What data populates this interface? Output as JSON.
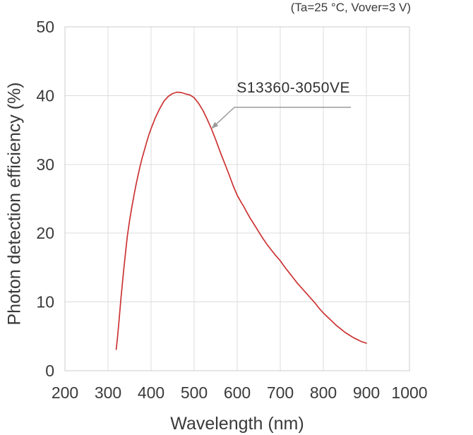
{
  "figure": {
    "condition_note": "(Ta=25 °C, Vover=3 V)"
  },
  "chart_data": {
    "type": "line",
    "title": "",
    "xlabel": "Wavelength (nm)",
    "ylabel": "Photon detection efficiency (%)",
    "xlim": [
      200,
      1000
    ],
    "ylim": [
      0,
      50
    ],
    "x_ticks": [
      200,
      300,
      400,
      500,
      600,
      700,
      800,
      900,
      1000
    ],
    "y_ticks": [
      0,
      10,
      20,
      30,
      40,
      50
    ],
    "grid": true,
    "legend": "none",
    "annotation": {
      "text": "S13360-3050VE",
      "target": [
        540,
        35.2
      ]
    },
    "series": [
      {
        "name": "S13360-3050VE",
        "color": "#cc3333",
        "points": [
          [
            319,
            3.1
          ],
          [
            322,
            4.8
          ],
          [
            325,
            6.9
          ],
          [
            330,
            10.5
          ],
          [
            335,
            13.8
          ],
          [
            340,
            16.8
          ],
          [
            345,
            19.6
          ],
          [
            350,
            21.8
          ],
          [
            355,
            23.7
          ],
          [
            360,
            25.4
          ],
          [
            365,
            27.0
          ],
          [
            370,
            28.5
          ],
          [
            375,
            29.9
          ],
          [
            380,
            31.1
          ],
          [
            385,
            32.2
          ],
          [
            390,
            33.3
          ],
          [
            395,
            34.3
          ],
          [
            400,
            35.2
          ],
          [
            410,
            36.8
          ],
          [
            420,
            38.1
          ],
          [
            430,
            39.2
          ],
          [
            440,
            39.9
          ],
          [
            450,
            40.3
          ],
          [
            460,
            40.5
          ],
          [
            470,
            40.45
          ],
          [
            480,
            40.25
          ],
          [
            490,
            40.1
          ],
          [
            500,
            39.7
          ],
          [
            510,
            38.9
          ],
          [
            520,
            37.9
          ],
          [
            530,
            36.6
          ],
          [
            540,
            35.2
          ],
          [
            550,
            33.6
          ],
          [
            560,
            31.9
          ],
          [
            570,
            30.3
          ],
          [
            580,
            28.7
          ],
          [
            590,
            27.0
          ],
          [
            600,
            25.5
          ],
          [
            610,
            24.4
          ],
          [
            615,
            23.9
          ],
          [
            620,
            23.3
          ],
          [
            630,
            22.2
          ],
          [
            640,
            21.2
          ],
          [
            650,
            20.2
          ],
          [
            660,
            19.2
          ],
          [
            670,
            18.3
          ],
          [
            680,
            17.5
          ],
          [
            690,
            16.7
          ],
          [
            700,
            16.0
          ],
          [
            710,
            15.1
          ],
          [
            720,
            14.3
          ],
          [
            730,
            13.5
          ],
          [
            740,
            12.7
          ],
          [
            750,
            12.0
          ],
          [
            760,
            11.3
          ],
          [
            770,
            10.6
          ],
          [
            780,
            9.9
          ],
          [
            790,
            9.1
          ],
          [
            800,
            8.4
          ],
          [
            810,
            7.8
          ],
          [
            820,
            7.2
          ],
          [
            830,
            6.6
          ],
          [
            840,
            6.1
          ],
          [
            850,
            5.6
          ],
          [
            860,
            5.2
          ],
          [
            870,
            4.8
          ],
          [
            880,
            4.5
          ],
          [
            890,
            4.2
          ],
          [
            900,
            4.0
          ]
        ]
      }
    ],
    "colors": {
      "curve": "#cc3333",
      "grid": "#dcdcdc",
      "plot_border": "#cccccc",
      "text": "#3a3a3a",
      "leader": "#9a9a9a"
    }
  }
}
